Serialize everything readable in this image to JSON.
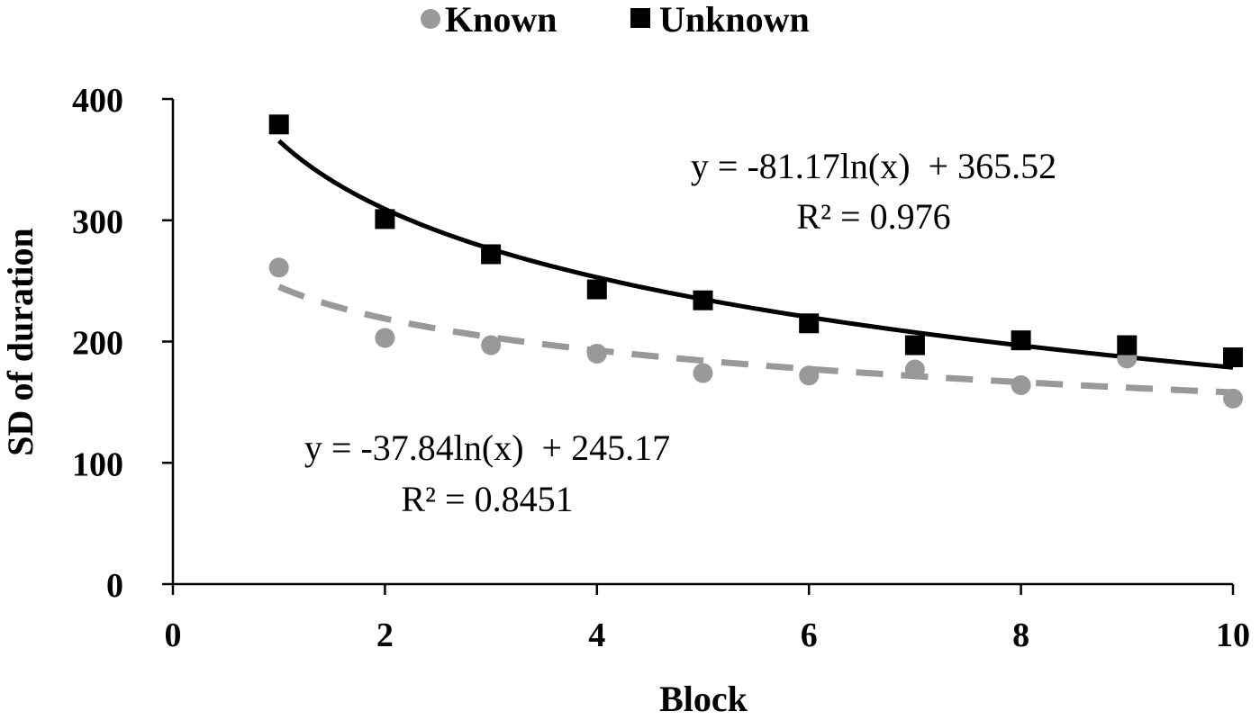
{
  "chart_data": {
    "type": "scatter",
    "xlabel": "Block",
    "ylabel": "SD of duration",
    "xlim": [
      0,
      10
    ],
    "ylim": [
      0,
      400
    ],
    "x_ticks": [
      "0",
      "2",
      "4",
      "6",
      "8",
      "10"
    ],
    "y_ticks": [
      "0",
      "100",
      "200",
      "300",
      "400"
    ],
    "grid": false,
    "legend_position": "top-center",
    "series": [
      {
        "name": "Known",
        "marker": "circle",
        "color": "#999999",
        "x": [
          1,
          2,
          3,
          4,
          5,
          6,
          7,
          8,
          9,
          10
        ],
        "y": [
          261,
          203,
          197,
          190,
          174,
          172,
          177,
          164,
          186,
          153
        ],
        "trendline": {
          "type": "logarithmic",
          "style": "dashed",
          "slope": -37.84,
          "intercept": 245.17,
          "equation": "y = -37.84ln(x)  + 245.17",
          "r2": "R² = 0.8451"
        }
      },
      {
        "name": "Unknown",
        "marker": "square",
        "color": "#000000",
        "x": [
          1,
          2,
          3,
          4,
          5,
          6,
          7,
          8,
          9,
          10
        ],
        "y": [
          379,
          301,
          272,
          243,
          234,
          215,
          197,
          201,
          197,
          187
        ],
        "trendline": {
          "type": "logarithmic",
          "style": "solid",
          "slope": -81.17,
          "intercept": 365.52,
          "equation": "y = -81.17ln(x)  + 365.52",
          "r2": "R² = 0.976"
        }
      }
    ]
  }
}
